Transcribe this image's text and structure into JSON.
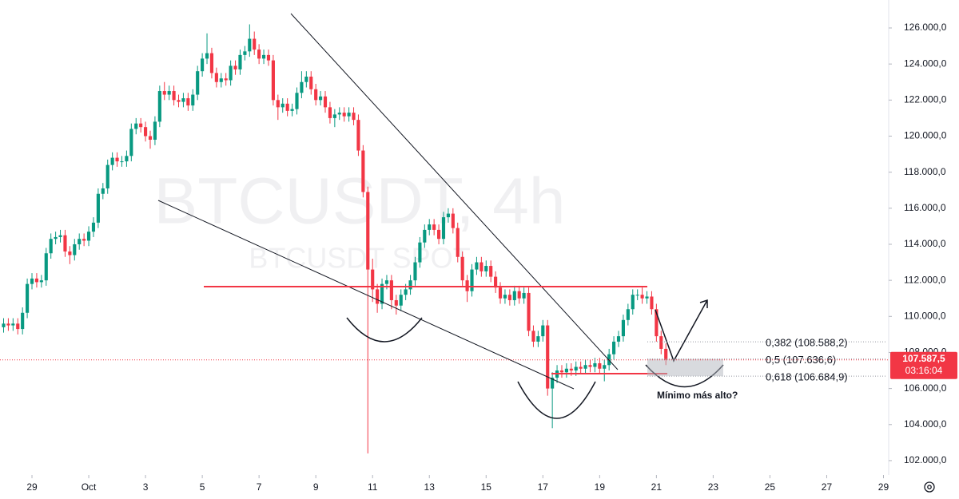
{
  "chart_data": {
    "type": "candlestick",
    "watermark": {
      "symbol": "BTCUSDT, 4h",
      "market": "BTCUSDT SPOT"
    },
    "annotation": "Mínimo más alto?",
    "up_color": "#089981",
    "down_color": "#f23645",
    "ylim": [
      101200,
      127550
    ],
    "yticks": [
      {
        "value": 102000,
        "label": "102.000,0"
      },
      {
        "value": 104000,
        "label": "104.000,0"
      },
      {
        "value": 106000,
        "label": "106.000,0"
      },
      {
        "value": 108000,
        "label": "108.000,0"
      },
      {
        "value": 110000,
        "label": "110.000,0"
      },
      {
        "value": 112000,
        "label": "112.000,0"
      },
      {
        "value": 114000,
        "label": "114.000,0"
      },
      {
        "value": 116000,
        "label": "116.000,0"
      },
      {
        "value": 118000,
        "label": "118.000,0"
      },
      {
        "value": 120000,
        "label": "120.000,0"
      },
      {
        "value": 122000,
        "label": "122.000,0"
      },
      {
        "value": 124000,
        "label": "124.000,0"
      },
      {
        "value": 126000,
        "label": "126.000,0"
      }
    ],
    "xlim": [
      -0.76,
      187.1
    ],
    "xticks": [
      {
        "value": 6,
        "label": "29"
      },
      {
        "value": 18,
        "label": "Oct"
      },
      {
        "value": 30,
        "label": "3"
      },
      {
        "value": 42,
        "label": "5"
      },
      {
        "value": 54,
        "label": "7"
      },
      {
        "value": 66,
        "label": "9"
      },
      {
        "value": 78,
        "label": "11"
      },
      {
        "value": 90,
        "label": "13"
      },
      {
        "value": 102,
        "label": "15"
      },
      {
        "value": 114,
        "label": "17"
      },
      {
        "value": 126,
        "label": "19"
      },
      {
        "value": 138,
        "label": "21"
      },
      {
        "value": 150,
        "label": "23"
      },
      {
        "value": 162,
        "label": "25"
      },
      {
        "value": 174,
        "label": "27"
      },
      {
        "value": 186,
        "label": "29"
      }
    ],
    "fib_levels": [
      {
        "value": 108588.2,
        "label": "0,382 (108.588,2)"
      },
      {
        "value": 107636.6,
        "label": "0,5 (107.636,6)"
      },
      {
        "value": 106684.9,
        "label": "0,618 (106.684,9)"
      }
    ],
    "last_price": {
      "value": 107587.5,
      "label": "107.587,5"
    },
    "countdown": "03:16:04",
    "open": [
      109400,
      109600,
      109500,
      109600,
      109300,
      110200,
      111800,
      112100,
      111900,
      112000,
      113500,
      114300,
      114400,
      114500,
      113600,
      113400,
      114000,
      114300,
      114200,
      114700,
      115200,
      116800,
      117100,
      118400,
      118800,
      118600,
      118600,
      118900,
      120400,
      120700,
      120500,
      120000,
      119800,
      120800,
      122500,
      122300,
      122500,
      122000,
      121900,
      122100,
      121700,
      122300,
      123600,
      124300,
      124600,
      123500,
      123000,
      123200,
      123100,
      123900,
      123700,
      124500,
      124700,
      125400,
      124800,
      124300,
      124500,
      124200,
      122000,
      121600,
      121800,
      121400,
      121500,
      122400,
      123000,
      123300,
      122600,
      122000,
      122200,
      121600,
      121000,
      121200,
      121300,
      121100,
      121300,
      120900,
      119200,
      116900,
      112600,
      111500,
      110700,
      111800,
      112000,
      110900,
      110600,
      111200,
      111500,
      112000,
      113000,
      114100,
      114800,
      115100,
      114800,
      114300,
      115500,
      115700,
      114900,
      113300,
      112000,
      111400,
      112600,
      113000,
      112500,
      112800,
      112200,
      111600,
      111000,
      111200,
      110900,
      111400,
      111000,
      111300,
      109200,
      108600,
      108900,
      109500,
      106000,
      106600,
      107000,
      106900,
      107100,
      107000,
      107200,
      107100,
      107300,
      107200,
      107400,
      107100,
      107300,
      107900,
      108600,
      108900,
      109800,
      110400,
      111200,
      111200,
      111000,
      111100,
      110400,
      108900,
      108200
    ],
    "high": [
      109900,
      109900,
      109900,
      109900,
      110500,
      112100,
      112400,
      112400,
      112300,
      113800,
      114600,
      114700,
      114800,
      114800,
      113900,
      114300,
      114600,
      114600,
      115000,
      115500,
      117100,
      117400,
      118700,
      119100,
      119100,
      118900,
      119200,
      120700,
      121000,
      121000,
      120800,
      120300,
      121100,
      122800,
      123000,
      122800,
      122800,
      122300,
      122400,
      122400,
      122600,
      123900,
      124600,
      125700,
      124900,
      123800,
      123500,
      123500,
      124200,
      124200,
      124800,
      125000,
      126200,
      125800,
      125100,
      124800,
      124800,
      124500,
      122300,
      122100,
      122100,
      121800,
      122700,
      123600,
      123600,
      123600,
      122900,
      122500,
      122500,
      121900,
      121500,
      121600,
      121600,
      121600,
      121600,
      121200,
      119500,
      117200,
      113200,
      111800,
      112100,
      112300,
      112300,
      111200,
      111500,
      111800,
      112300,
      113300,
      114400,
      115100,
      115400,
      115400,
      115100,
      115800,
      116000,
      116000,
      115200,
      113600,
      112300,
      112900,
      113300,
      113300,
      113100,
      113100,
      112500,
      111900,
      111500,
      111500,
      111700,
      111700,
      111600,
      111600,
      109500,
      109200,
      109800,
      109800,
      106900,
      107300,
      107300,
      107400,
      107400,
      107500,
      107500,
      107600,
      107600,
      107700,
      107700,
      107600,
      108200,
      108900,
      109200,
      110100,
      110700,
      111500,
      111500,
      111600,
      111400,
      111400,
      110700,
      109200,
      108500
    ],
    "low": [
      109100,
      109200,
      109200,
      109000,
      109000,
      109900,
      111500,
      111600,
      111600,
      111700,
      113200,
      114000,
      114100,
      113300,
      112900,
      113100,
      113700,
      113900,
      113900,
      114400,
      114900,
      116500,
      116800,
      118100,
      118300,
      118300,
      118300,
      118600,
      120100,
      120200,
      119700,
      119300,
      119500,
      120500,
      122000,
      122000,
      121700,
      121600,
      121600,
      121400,
      121400,
      122000,
      123300,
      124000,
      123200,
      122700,
      122700,
      122800,
      122800,
      123400,
      123400,
      124200,
      124400,
      124500,
      124000,
      124000,
      123900,
      121700,
      120900,
      121300,
      121100,
      121100,
      121200,
      122100,
      122700,
      122300,
      121700,
      121700,
      121300,
      120700,
      120500,
      120900,
      120800,
      120800,
      120600,
      118900,
      116600,
      102400,
      110800,
      110200,
      110400,
      111500,
      110400,
      110100,
      110300,
      110900,
      111200,
      111700,
      112700,
      113800,
      114500,
      114500,
      114000,
      114000,
      115200,
      114600,
      113000,
      111700,
      110800,
      111100,
      112300,
      112200,
      112200,
      111900,
      111300,
      110700,
      110700,
      110600,
      110600,
      110700,
      110700,
      108900,
      108300,
      108300,
      108600,
      105600,
      103800,
      106300,
      106600,
      106600,
      106700,
      106700,
      106800,
      106800,
      106900,
      106900,
      106800,
      106400,
      107000,
      107600,
      108300,
      108600,
      109500,
      110100,
      110900,
      110700,
      110700,
      110100,
      108600,
      107900,
      107300
    ],
    "close": [
      109600,
      109500,
      109600,
      109300,
      110200,
      111800,
      112100,
      111900,
      112000,
      113500,
      114300,
      114400,
      114500,
      113600,
      113400,
      114000,
      114300,
      114200,
      114700,
      115200,
      116800,
      117100,
      118400,
      118800,
      118600,
      118600,
      118900,
      120400,
      120700,
      120500,
      120000,
      119800,
      120800,
      122500,
      122300,
      122500,
      122000,
      121900,
      122100,
      121700,
      122300,
      123600,
      124300,
      124600,
      123500,
      123000,
      123200,
      123100,
      123900,
      123700,
      124500,
      124700,
      125400,
      124800,
      124300,
      124500,
      124200,
      122000,
      121600,
      121800,
      121400,
      121500,
      122400,
      123000,
      123300,
      122600,
      122000,
      122200,
      121600,
      121000,
      121200,
      121300,
      121100,
      121300,
      120900,
      119200,
      116900,
      112600,
      111500,
      110700,
      111800,
      112000,
      110900,
      110600,
      111200,
      111500,
      112000,
      113000,
      114100,
      114800,
      115100,
      114800,
      114300,
      115500,
      115700,
      114900,
      113300,
      112000,
      111400,
      112600,
      113000,
      112500,
      112800,
      112200,
      111600,
      111000,
      111200,
      110900,
      111400,
      111000,
      111300,
      109200,
      108600,
      108900,
      109500,
      106000,
      106600,
      107000,
      106900,
      107100,
      107000,
      107200,
      107100,
      107300,
      107200,
      107400,
      107100,
      107300,
      107900,
      108600,
      108900,
      109800,
      110400,
      111200,
      111200,
      111000,
      111100,
      110400,
      108900,
      108200,
      107587.5
    ]
  }
}
